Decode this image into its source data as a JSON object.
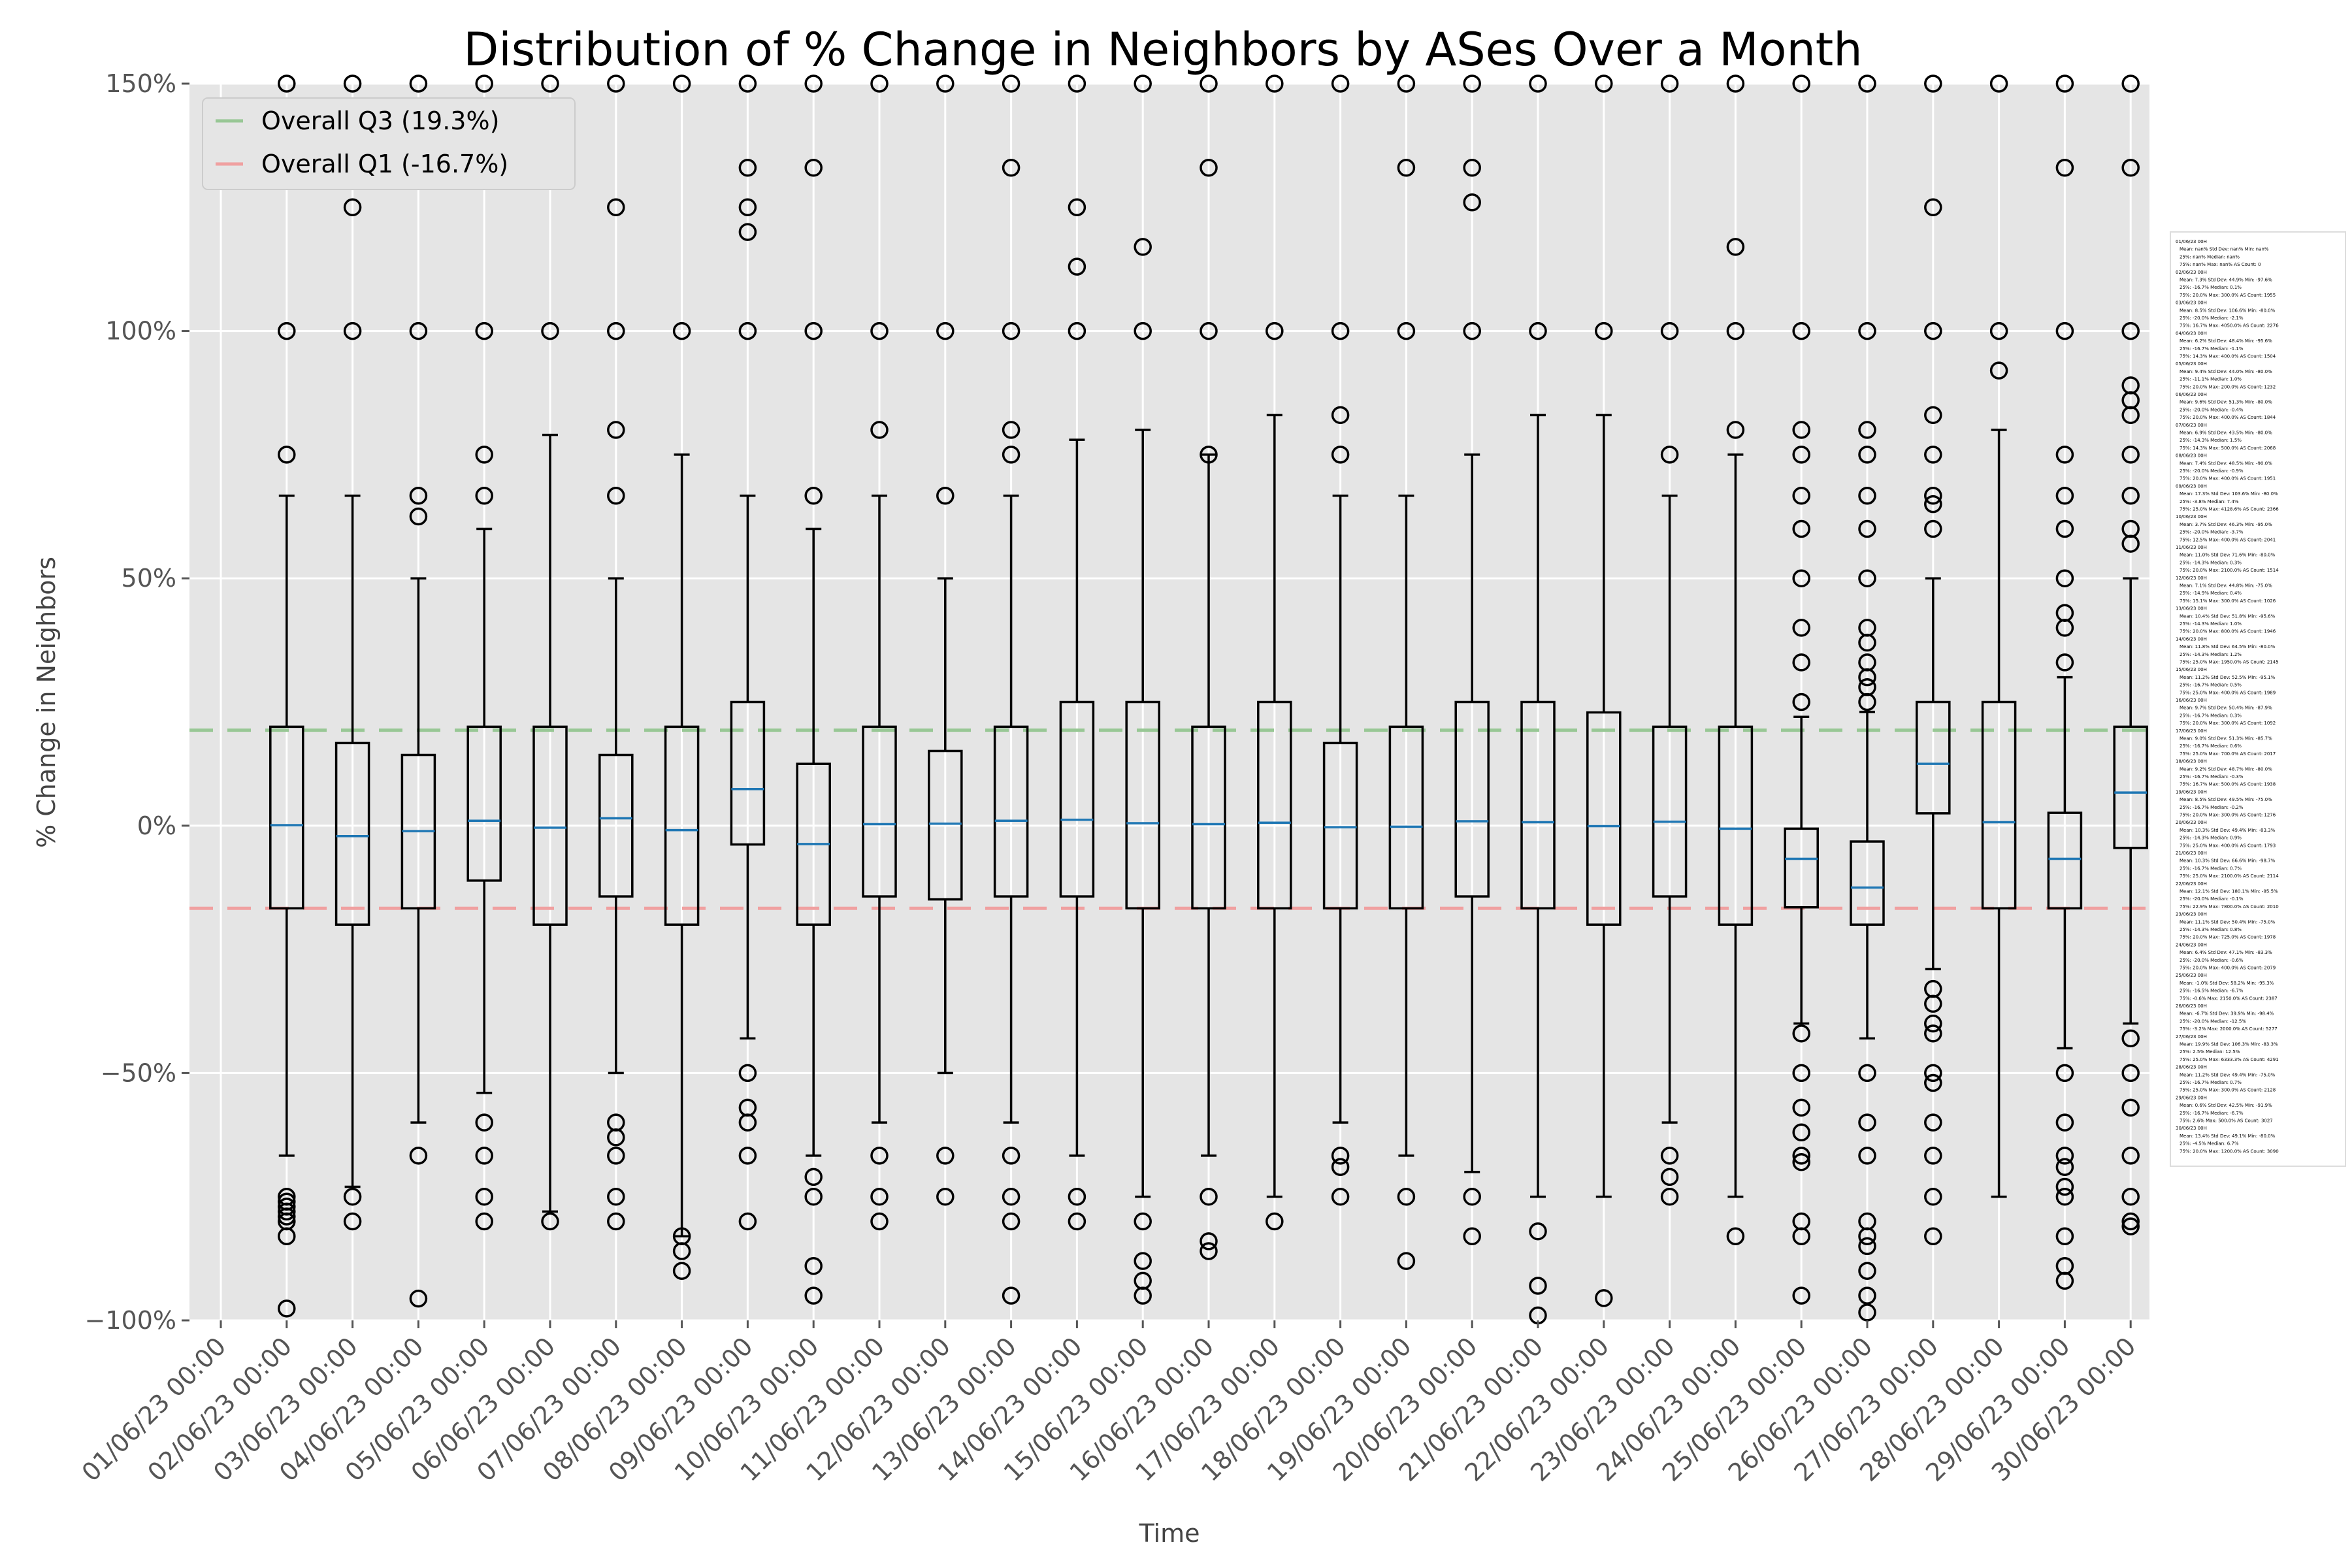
{
  "chart_data": {
    "type": "box",
    "title": "Distribution of % Change in Neighbors by ASes Over a Month",
    "xlabel": "Time",
    "ylabel": "% Change in Neighbors",
    "ylim": [
      -100,
      150
    ],
    "yticks": [
      -100,
      -50,
      0,
      50,
      100,
      150
    ],
    "ytick_labels": [
      "−100%",
      "−50%",
      "0%",
      "50%",
      "100%",
      "150%"
    ],
    "grid": true,
    "background": "#e5e5e5",
    "box_color": "#000000",
    "median_color": "#1f77b4",
    "categories": [
      "01/06/23 00:00",
      "02/06/23 00:00",
      "03/06/23 00:00",
      "04/06/23 00:00",
      "05/06/23 00:00",
      "06/06/23 00:00",
      "07/06/23 00:00",
      "08/06/23 00:00",
      "09/06/23 00:00",
      "10/06/23 00:00",
      "11/06/23 00:00",
      "12/06/23 00:00",
      "13/06/23 00:00",
      "14/06/23 00:00",
      "15/06/23 00:00",
      "16/06/23 00:00",
      "17/06/23 00:00",
      "18/06/23 00:00",
      "19/06/23 00:00",
      "20/06/23 00:00",
      "21/06/23 00:00",
      "22/06/23 00:00",
      "23/06/23 00:00",
      "24/06/23 00:00",
      "25/06/23 00:00",
      "26/06/23 00:00",
      "27/06/23 00:00",
      "28/06/23 00:00",
      "29/06/23 00:00",
      "30/06/23 00:00"
    ],
    "boxes": [
      {
        "x": "01/06/23 00:00",
        "empty": true
      },
      {
        "x": "02/06/23 00:00",
        "q1": -16.7,
        "median": 0.1,
        "q3": 20.0,
        "whislo": -66.7,
        "whishi": 66.7,
        "fliers": [
          150,
          100,
          75,
          -75,
          -76,
          -77,
          -78,
          -79,
          -80,
          -83,
          -97.6
        ]
      },
      {
        "x": "03/06/23 00:00",
        "q1": -20.0,
        "median": -2.1,
        "q3": 16.7,
        "whislo": -73,
        "whishi": 66.7,
        "fliers": [
          150,
          125,
          100,
          -75,
          -80
        ]
      },
      {
        "x": "04/06/23 00:00",
        "q1": -16.7,
        "median": -1.1,
        "q3": 14.3,
        "whislo": -60,
        "whishi": 50,
        "fliers": [
          150,
          100,
          66.7,
          62.5,
          -66.7,
          -95.6
        ]
      },
      {
        "x": "05/06/23 00:00",
        "q1": -11.1,
        "median": 1.0,
        "q3": 20.0,
        "whislo": -54,
        "whishi": 60,
        "fliers": [
          150,
          100,
          75,
          66.7,
          -60,
          -66.7,
          -75,
          -80
        ]
      },
      {
        "x": "06/06/23 00:00",
        "q1": -20.0,
        "median": -0.4,
        "q3": 20.0,
        "whislo": -78,
        "whishi": 79,
        "fliers": [
          150,
          100,
          -80
        ]
      },
      {
        "x": "07/06/23 00:00",
        "q1": -14.3,
        "median": 1.5,
        "q3": 14.3,
        "whislo": -50,
        "whishi": 50,
        "fliers": [
          150,
          125,
          100,
          80,
          66.7,
          -60,
          -63,
          -66.7,
          -75,
          -80
        ]
      },
      {
        "x": "08/06/23 00:00",
        "q1": -20.0,
        "median": -0.9,
        "q3": 20.0,
        "whislo": -83,
        "whishi": 75,
        "fliers": [
          150,
          100,
          -83,
          -86,
          -90
        ]
      },
      {
        "x": "09/06/23 00:00",
        "q1": -3.8,
        "median": 7.4,
        "q3": 25.0,
        "whislo": -43,
        "whishi": 66.7,
        "fliers": [
          150,
          133,
          125,
          120,
          100,
          -50,
          -57,
          -60,
          -66.7,
          -80
        ]
      },
      {
        "x": "10/06/23 00:00",
        "q1": -20.0,
        "median": -3.7,
        "q3": 12.5,
        "whislo": -66.7,
        "whishi": 60,
        "fliers": [
          150,
          133,
          100,
          66.7,
          -71,
          -75,
          -89,
          -95
        ]
      },
      {
        "x": "11/06/23 00:00",
        "q1": -14.3,
        "median": 0.3,
        "q3": 20.0,
        "whislo": -60,
        "whishi": 66.7,
        "fliers": [
          150,
          100,
          80,
          -66.7,
          -75,
          -80
        ]
      },
      {
        "x": "12/06/23 00:00",
        "q1": -14.9,
        "median": 0.4,
        "q3": 15.1,
        "whislo": -50,
        "whishi": 50,
        "fliers": [
          150,
          100,
          66.7,
          -66.7,
          -75
        ]
      },
      {
        "x": "13/06/23 00:00",
        "q1": -14.3,
        "median": 1.0,
        "q3": 20.0,
        "whislo": -60,
        "whishi": 66.7,
        "fliers": [
          150,
          133,
          100,
          80,
          75,
          -66.7,
          -75,
          -80,
          -95
        ]
      },
      {
        "x": "14/06/23 00:00",
        "q1": -14.3,
        "median": 1.2,
        "q3": 25.0,
        "whislo": -66.7,
        "whishi": 78,
        "fliers": [
          150,
          125,
          113,
          100,
          -75,
          -80
        ]
      },
      {
        "x": "15/06/23 00:00",
        "q1": -16.7,
        "median": 0.5,
        "q3": 25.0,
        "whislo": -75,
        "whishi": 80,
        "fliers": [
          150,
          117,
          100,
          -80,
          -88,
          -92,
          -95
        ]
      },
      {
        "x": "16/06/23 00:00",
        "q1": -16.7,
        "median": 0.3,
        "q3": 20.0,
        "whislo": -66.7,
        "whishi": 75,
        "fliers": [
          150,
          133,
          100,
          75,
          -75,
          -84,
          -86
        ]
      },
      {
        "x": "17/06/23 00:00",
        "q1": -16.7,
        "median": 0.6,
        "q3": 25.0,
        "whislo": -75,
        "whishi": 83,
        "fliers": [
          150,
          100,
          -80
        ]
      },
      {
        "x": "18/06/23 00:00",
        "q1": -16.7,
        "median": -0.3,
        "q3": 16.7,
        "whislo": -60,
        "whishi": 66.7,
        "fliers": [
          150,
          100,
          83,
          75,
          -66.7,
          -69,
          -75
        ]
      },
      {
        "x": "19/06/23 00:00",
        "q1": -16.7,
        "median": -0.2,
        "q3": 20.0,
        "whislo": -66.7,
        "whishi": 66.7,
        "fliers": [
          150,
          133,
          100,
          -75,
          -88
        ]
      },
      {
        "x": "20/06/23 00:00",
        "q1": -14.3,
        "median": 0.9,
        "q3": 25.0,
        "whislo": -70,
        "whishi": 75,
        "fliers": [
          150,
          133,
          126,
          100,
          -75,
          -83
        ]
      },
      {
        "x": "21/06/23 00:00",
        "q1": -16.7,
        "median": 0.7,
        "q3": 25.0,
        "whislo": -75,
        "whishi": 83,
        "fliers": [
          150,
          100,
          -82,
          -93,
          -99
        ]
      },
      {
        "x": "22/06/23 00:00",
        "q1": -20.0,
        "median": -0.1,
        "q3": 22.9,
        "whislo": -75,
        "whishi": 83,
        "fliers": [
          150,
          100,
          -95.5
        ]
      },
      {
        "x": "23/06/23 00:00",
        "q1": -14.3,
        "median": 0.8,
        "q3": 20.0,
        "whislo": -60,
        "whishi": 66.7,
        "fliers": [
          150,
          100,
          75,
          -66.7,
          -71,
          -75
        ]
      },
      {
        "x": "24/06/23 00:00",
        "q1": -20.0,
        "median": -0.6,
        "q3": 20.0,
        "whislo": -75,
        "whishi": 75,
        "fliers": [
          150,
          117,
          100,
          80,
          -83
        ]
      },
      {
        "x": "25/06/23 00:00",
        "q1": -16.5,
        "median": -6.7,
        "q3": -0.6,
        "whislo": -40,
        "whishi": 22,
        "fliers": [
          150,
          100,
          80,
          75,
          66.7,
          60,
          50,
          40,
          33,
          25,
          -42,
          -50,
          -57,
          -62,
          -66.7,
          -68,
          -80,
          -83,
          -95
        ]
      },
      {
        "x": "26/06/23 00:00",
        "q1": -20.0,
        "median": -12.5,
        "q3": -3.2,
        "whislo": -43,
        "whishi": 23,
        "fliers": [
          150,
          100,
          80,
          75,
          66.7,
          60,
          50,
          40,
          37,
          33,
          30,
          28,
          25,
          -50,
          -60,
          -66.7,
          -80,
          -83,
          -85,
          -90,
          -95,
          -98.4
        ]
      },
      {
        "x": "27/06/23 00:00",
        "q1": 2.5,
        "median": 12.5,
        "q3": 25.0,
        "whislo": -29,
        "whishi": 50,
        "fliers": [
          150,
          125,
          100,
          83,
          75,
          66.7,
          65,
          60,
          -33,
          -36,
          -40,
          -42,
          -50,
          -52,
          -60,
          -66.7,
          -75,
          -83
        ]
      },
      {
        "x": "28/06/23 00:00",
        "q1": -16.7,
        "median": 0.7,
        "q3": 25.0,
        "whislo": -75,
        "whishi": 80,
        "fliers": [
          150,
          100,
          92
        ]
      },
      {
        "x": "29/06/23 00:00",
        "q1": -16.7,
        "median": -6.7,
        "q3": 2.6,
        "whislo": -45,
        "whishi": 30,
        "fliers": [
          150,
          133,
          100,
          75,
          66.7,
          60,
          50,
          43,
          40,
          33,
          -50,
          -60,
          -66.7,
          -69,
          -73,
          -75,
          -83,
          -89,
          -92
        ]
      },
      {
        "x": "30/06/23 00:00",
        "q1": -4.5,
        "median": 6.7,
        "q3": 20.0,
        "whislo": -40,
        "whishi": 50,
        "fliers": [
          150,
          133,
          100,
          89,
          86,
          83,
          75,
          66.7,
          60,
          57,
          -43,
          -50,
          -57,
          -66.7,
          -75,
          -80,
          -81
        ]
      }
    ],
    "reference_lines": [
      {
        "label": "Overall Q3 (19.3%)",
        "value": 19.3,
        "color": "#98c795"
      },
      {
        "label": "Overall Q1 (-16.7%)",
        "value": -16.7,
        "color": "#f0a0a0"
      }
    ],
    "legend_placement": "top-left",
    "stats_panel": [
      {
        "date": "01/06/23 00H",
        "line1": "Mean: nan%  Std Dev: nan%  Min: nan%",
        "line2": "25%: nan%  Median: nan%",
        "line3": "75%: nan%  Max: nan%  AS Count: 0"
      },
      {
        "date": "02/06/23 00H",
        "line1": "Mean: 7.3%  Std Dev: 44.9%  Min: -97.6%",
        "line2": "25%: -16.7%  Median: 0.1%",
        "line3": "75%: 20.0%  Max: 300.0%  AS Count: 1955"
      },
      {
        "date": "03/06/23 00H",
        "line1": "Mean: 8.5%  Std Dev: 106.6%  Min: -80.0%",
        "line2": "25%: -20.0%  Median: -2.1%",
        "line3": "75%: 16.7%  Max: 4050.0%  AS Count: 2276"
      },
      {
        "date": "04/06/23 00H",
        "line1": "Mean: 6.2%  Std Dev: 48.4%  Min: -95.6%",
        "line2": "25%: -16.7%  Median: -1.1%",
        "line3": "75%: 14.3%  Max: 400.0%  AS Count: 1504"
      },
      {
        "date": "05/06/23 00H",
        "line1": "Mean: 9.4%  Std Dev: 44.0%  Min: -80.0%",
        "line2": "25%: -11.1%  Median: 1.0%",
        "line3": "75%: 20.0%  Max: 200.0%  AS Count: 1232"
      },
      {
        "date": "06/06/23 00H",
        "line1": "Mean: 9.6%  Std Dev: 51.3%  Min: -80.0%",
        "line2": "25%: -20.0%  Median: -0.4%",
        "line3": "75%: 20.0%  Max: 400.0%  AS Count: 1844"
      },
      {
        "date": "07/06/23 00H",
        "line1": "Mean: 6.9%  Std Dev: 43.5%  Min: -80.0%",
        "line2": "25%: -14.3%  Median: 1.5%",
        "line3": "75%: 14.3%  Max: 500.0%  AS Count: 2068"
      },
      {
        "date": "08/06/23 00H",
        "line1": "Mean: 7.4%  Std Dev: 48.5%  Min: -90.0%",
        "line2": "25%: -20.0%  Median: -0.9%",
        "line3": "75%: 20.0%  Max: 400.0%  AS Count: 1951"
      },
      {
        "date": "09/06/23 00H",
        "line1": "Mean: 17.3%  Std Dev: 103.6%  Min: -80.0%",
        "line2": "25%: -3.8%  Median: 7.4%",
        "line3": "75%: 25.0%  Max: 4128.6%  AS Count: 2366"
      },
      {
        "date": "10/06/23 00H",
        "line1": "Mean: 3.7%  Std Dev: 46.3%  Min: -95.0%",
        "line2": "25%: -20.0%  Median: -3.7%",
        "line3": "75%: 12.5%  Max: 400.0%  AS Count: 2041"
      },
      {
        "date": "11/06/23 00H",
        "line1": "Mean: 11.0%  Std Dev: 71.6%  Min: -80.0%",
        "line2": "25%: -14.3%  Median: 0.3%",
        "line3": "75%: 20.0%  Max: 2100.0%  AS Count: 1514"
      },
      {
        "date": "12/06/23 00H",
        "line1": "Mean: 7.1%  Std Dev: 44.8%  Min: -75.0%",
        "line2": "25%: -14.9%  Median: 0.4%",
        "line3": "75%: 15.1%  Max: 300.0%  AS Count: 1026"
      },
      {
        "date": "13/06/23 00H",
        "line1": "Mean: 10.4%  Std Dev: 51.8%  Min: -95.6%",
        "line2": "25%: -14.3%  Median: 1.0%",
        "line3": "75%: 20.0%  Max: 800.0%  AS Count: 1946"
      },
      {
        "date": "14/06/23 00H",
        "line1": "Mean: 11.8%  Std Dev: 64.5%  Min: -80.0%",
        "line2": "25%: -14.3%  Median: 1.2%",
        "line3": "75%: 25.0%  Max: 1950.0%  AS Count: 2145"
      },
      {
        "date": "15/06/23 00H",
        "line1": "Mean: 11.2%  Std Dev: 52.5%  Min: -95.1%",
        "line2": "25%: -16.7%  Median: 0.5%",
        "line3": "75%: 25.0%  Max: 400.0%  AS Count: 1989"
      },
      {
        "date": "16/06/23 00H",
        "line1": "Mean: 9.7%  Std Dev: 50.4%  Min: -87.9%",
        "line2": "25%: -16.7%  Median: 0.3%",
        "line3": "75%: 20.0%  Max: 300.0%  AS Count: 1092"
      },
      {
        "date": "17/06/23 00H",
        "line1": "Mean: 9.0%  Std Dev: 51.3%  Min: -85.7%",
        "line2": "25%: -16.7%  Median: 0.6%",
        "line3": "75%: 25.0%  Max: 700.0%  AS Count: 2017"
      },
      {
        "date": "18/06/23 00H",
        "line1": "Mean: 9.2%  Std Dev: 48.7%  Min: -80.0%",
        "line2": "25%: -16.7%  Median: -0.3%",
        "line3": "75%: 16.7%  Max: 500.0%  AS Count: 1938"
      },
      {
        "date": "19/06/23 00H",
        "line1": "Mean: 8.5%  Std Dev: 49.5%  Min: -75.0%",
        "line2": "25%: -16.7%  Median: -0.2%",
        "line3": "75%: 20.0%  Max: 300.0%  AS Count: 1276"
      },
      {
        "date": "20/06/23 00H",
        "line1": "Mean: 10.3%  Std Dev: 49.4%  Min: -83.3%",
        "line2": "25%: -14.3%  Median: 0.9%",
        "line3": "75%: 25.0%  Max: 400.0%  AS Count: 1793"
      },
      {
        "date": "21/06/23 00H",
        "line1": "Mean: 10.3%  Std Dev: 66.6%  Min: -98.7%",
        "line2": "25%: -16.7%  Median: 0.7%",
        "line3": "75%: 25.0%  Max: 2100.0%  AS Count: 2114"
      },
      {
        "date": "22/06/23 00H",
        "line1": "Mean: 12.1%  Std Dev: 180.1%  Min: -95.5%",
        "line2": "25%: -20.0%  Median: -0.1%",
        "line3": "75%: 22.9%  Max: 7800.0%  AS Count: 2010"
      },
      {
        "date": "23/06/23 00H",
        "line1": "Mean: 11.1%  Std Dev: 50.4%  Min: -75.0%",
        "line2": "25%: -14.3%  Median: 0.8%",
        "line3": "75%: 20.0%  Max: 725.0%  AS Count: 1978"
      },
      {
        "date": "24/06/23 00H",
        "line1": "Mean: 6.4%  Std Dev: 47.1%  Min: -83.3%",
        "line2": "25%: -20.0%  Median: -0.6%",
        "line3": "75%: 20.0%  Max: 400.0%  AS Count: 2079"
      },
      {
        "date": "25/06/23 00H",
        "line1": "Mean: -1.0%  Std Dev: 58.2%  Min: -95.3%",
        "line2": "25%: -16.5%  Median: -6.7%",
        "line3": "75%: -0.6%  Max: 2150.0%  AS Count: 2387"
      },
      {
        "date": "26/06/23 00H",
        "line1": "Mean: -6.7%  Std Dev: 39.9%  Min: -98.4%",
        "line2": "25%: -20.0%  Median: -12.5%",
        "line3": "75%: -3.2%  Max: 2000.0%  AS Count: 5277"
      },
      {
        "date": "27/06/23 00H",
        "line1": "Mean: 19.9%  Std Dev: 106.3%  Min: -83.3%",
        "line2": "25%: 2.5%  Median: 12.5%",
        "line3": "75%: 25.0%  Max: 6333.3%  AS Count: 4291"
      },
      {
        "date": "28/06/23 00H",
        "line1": "Mean: 11.2%  Std Dev: 49.4%  Min: -75.0%",
        "line2": "25%: -16.7%  Median: 0.7%",
        "line3": "75%: 25.0%  Max: 300.0%  AS Count: 2128"
      },
      {
        "date": "29/06/23 00H",
        "line1": "Mean: 0.6%  Std Dev: 42.5%  Min: -91.9%",
        "line2": "25%: -16.7%  Median: -6.7%",
        "line3": "75%: 2.6%  Max: 500.0%  AS Count: 3027"
      },
      {
        "date": "30/06/23 00H",
        "line1": "Mean: 13.4%  Std Dev: 49.1%  Min: -80.0%",
        "line2": "25%: -4.5%  Median: 6.7%",
        "line3": "75%: 20.0%  Max: 1200.0%  AS Count: 3090"
      }
    ]
  }
}
